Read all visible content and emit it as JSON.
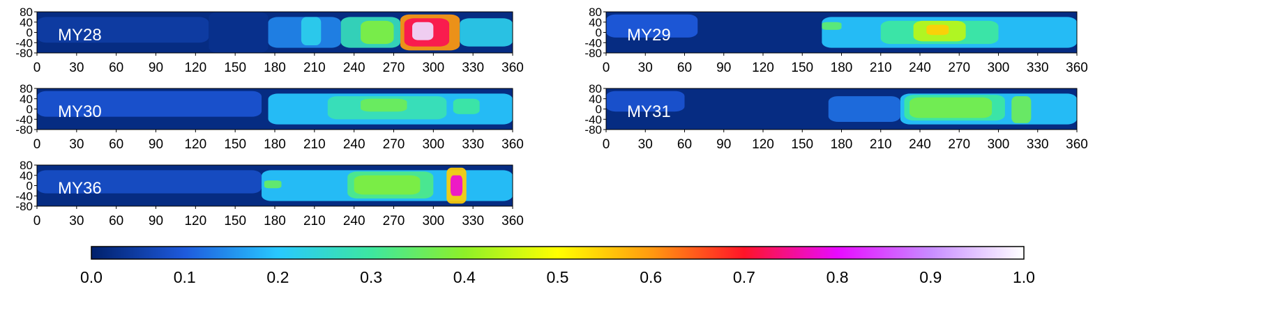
{
  "chart_data": {
    "type": "heatmap",
    "panels": [
      {
        "label": "MY28",
        "xlim": [
          0,
          360
        ],
        "ylim": [
          -80,
          80
        ],
        "x_ticks": [
          "0",
          "30",
          "60",
          "90",
          "120",
          "150",
          "180",
          "210",
          "240",
          "270",
          "300",
          "330",
          "360"
        ],
        "y_ticks": [
          "80",
          "40",
          "0",
          "-40",
          "-80"
        ],
        "features": [
          {
            "x": [
              0,
              130
            ],
            "lat": [
              -40,
              60
            ],
            "value": 0.05
          },
          {
            "x": [
              130,
              175
            ],
            "lat": [
              -80,
              80
            ],
            "value": 0.03
          },
          {
            "x": [
              175,
              230
            ],
            "lat": [
              -60,
              60
            ],
            "value": 0.14
          },
          {
            "x": [
              200,
              215
            ],
            "lat": [
              -50,
              60
            ],
            "value": 0.22
          },
          {
            "x": [
              230,
              275
            ],
            "lat": [
              -60,
              60
            ],
            "value": 0.27
          },
          {
            "x": [
              245,
              270
            ],
            "lat": [
              -45,
              45
            ],
            "value": 0.38
          },
          {
            "x": [
              275,
              320
            ],
            "lat": [
              -70,
              70
            ],
            "value": 0.6
          },
          {
            "x": [
              278,
              312
            ],
            "lat": [
              -55,
              55
            ],
            "value": 0.72
          },
          {
            "x": [
              284,
              300
            ],
            "lat": [
              -30,
              40
            ],
            "value": 0.97
          },
          {
            "x": [
              320,
              360
            ],
            "lat": [
              -55,
              55
            ],
            "value": 0.22
          }
        ]
      },
      {
        "label": "MY29",
        "xlim": [
          0,
          360
        ],
        "ylim": [
          -80,
          80
        ],
        "x_ticks": [
          "0",
          "30",
          "60",
          "90",
          "120",
          "150",
          "180",
          "210",
          "240",
          "270",
          "300",
          "330",
          "360"
        ],
        "y_ticks": [
          "80",
          "40",
          "0",
          "-40",
          "-80"
        ],
        "features": [
          {
            "x": [
              0,
              70
            ],
            "lat": [
              -20,
              70
            ],
            "value": 0.1
          },
          {
            "x": [
              165,
              360
            ],
            "lat": [
              -60,
              60
            ],
            "value": 0.2
          },
          {
            "x": [
              210,
              300
            ],
            "lat": [
              -45,
              45
            ],
            "value": 0.3
          },
          {
            "x": [
              235,
              275
            ],
            "lat": [
              -35,
              45
            ],
            "value": 0.44
          },
          {
            "x": [
              245,
              262
            ],
            "lat": [
              -10,
              30
            ],
            "value": 0.55
          },
          {
            "x": [
              165,
              180
            ],
            "lat": [
              10,
              40
            ],
            "value": 0.34
          }
        ]
      },
      {
        "label": "MY30",
        "xlim": [
          0,
          360
        ],
        "ylim": [
          -80,
          80
        ],
        "x_ticks": [
          "0",
          "30",
          "60",
          "90",
          "120",
          "150",
          "180",
          "210",
          "240",
          "270",
          "300",
          "330",
          "360"
        ],
        "y_ticks": [
          "80",
          "40",
          "0",
          "-40",
          "-80"
        ],
        "features": [
          {
            "x": [
              0,
              170
            ],
            "lat": [
              -30,
              70
            ],
            "value": 0.09
          },
          {
            "x": [
              175,
              360
            ],
            "lat": [
              -60,
              60
            ],
            "value": 0.2
          },
          {
            "x": [
              220,
              310
            ],
            "lat": [
              -40,
              50
            ],
            "value": 0.28
          },
          {
            "x": [
              245,
              280
            ],
            "lat": [
              -10,
              40
            ],
            "value": 0.36
          },
          {
            "x": [
              315,
              335
            ],
            "lat": [
              -20,
              40
            ],
            "value": 0.3
          }
        ]
      },
      {
        "label": "MY31",
        "xlim": [
          0,
          360
        ],
        "ylim": [
          -80,
          80
        ],
        "x_ticks": [
          "0",
          "30",
          "60",
          "90",
          "120",
          "150",
          "180",
          "210",
          "240",
          "270",
          "300",
          "330",
          "360"
        ],
        "y_ticks": [
          "80",
          "40",
          "0",
          "-40",
          "-80"
        ],
        "features": [
          {
            "x": [
              0,
              60
            ],
            "lat": [
              -10,
              70
            ],
            "value": 0.09
          },
          {
            "x": [
              170,
              225
            ],
            "lat": [
              -50,
              50
            ],
            "value": 0.12
          },
          {
            "x": [
              225,
              360
            ],
            "lat": [
              -60,
              60
            ],
            "value": 0.2
          },
          {
            "x": [
              228,
              305
            ],
            "lat": [
              -45,
              55
            ],
            "value": 0.3
          },
          {
            "x": [
              232,
              295
            ],
            "lat": [
              -35,
              45
            ],
            "value": 0.37
          },
          {
            "x": [
              310,
              325
            ],
            "lat": [
              -55,
              50
            ],
            "value": 0.36
          }
        ]
      },
      {
        "label": "MY36",
        "xlim": [
          0,
          360
        ],
        "ylim": [
          -80,
          80
        ],
        "x_ticks": [
          "0",
          "30",
          "60",
          "90",
          "120",
          "150",
          "180",
          "210",
          "240",
          "270",
          "300",
          "330",
          "360"
        ],
        "y_ticks": [
          "80",
          "40",
          "0",
          "-40",
          "-80"
        ],
        "features": [
          {
            "x": [
              0,
              170
            ],
            "lat": [
              -30,
              60
            ],
            "value": 0.08
          },
          {
            "x": [
              170,
              360
            ],
            "lat": [
              -60,
              60
            ],
            "value": 0.2
          },
          {
            "x": [
              172,
              185
            ],
            "lat": [
              -10,
              20
            ],
            "value": 0.35
          },
          {
            "x": [
              235,
              300
            ],
            "lat": [
              -50,
              55
            ],
            "value": 0.32
          },
          {
            "x": [
              240,
              290
            ],
            "lat": [
              -35,
              40
            ],
            "value": 0.38
          },
          {
            "x": [
              310,
              325
            ],
            "lat": [
              -70,
              70
            ],
            "value": 0.55
          },
          {
            "x": [
              313,
              322
            ],
            "lat": [
              -40,
              40
            ],
            "value": 0.78
          }
        ]
      }
    ],
    "colorbar": {
      "range": [
        0.0,
        1.0
      ],
      "tick_labels": [
        "0.0",
        "0.1",
        "0.2",
        "0.3",
        "0.4",
        "0.5",
        "0.6",
        "0.7",
        "0.8",
        "0.9",
        "1.0"
      ],
      "colors": [
        "#00206b",
        "#1e5adc",
        "#28c8ff",
        "#3de7a0",
        "#8ef028",
        "#ffff00",
        "#ff9a10",
        "#ff1428",
        "#e80aff",
        "#c88cff",
        "#ffffff"
      ]
    }
  }
}
